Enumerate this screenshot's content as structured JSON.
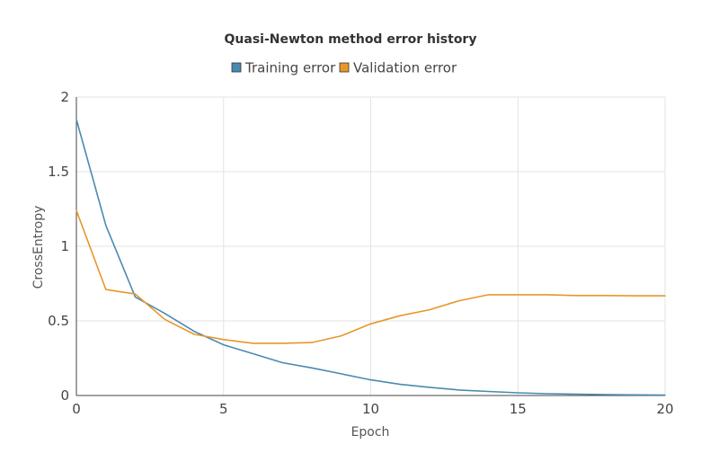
{
  "chart_data": {
    "type": "line",
    "title": "Quasi-Newton method error history",
    "xlabel": "Epoch",
    "ylabel": "CrossEntropy",
    "xlim": [
      0,
      20
    ],
    "ylim": [
      0,
      2
    ],
    "xticks": [
      "0",
      "5",
      "10",
      "15",
      "20"
    ],
    "yticks": [
      "0",
      "0.5",
      "1",
      "1.5",
      "2"
    ],
    "grid": true,
    "legend_position": "top-center",
    "x": [
      0,
      1,
      2,
      3,
      4,
      5,
      6,
      7,
      8,
      9,
      10,
      11,
      12,
      13,
      14,
      15,
      16,
      17,
      18,
      19,
      20
    ],
    "series": [
      {
        "name": "Training error",
        "color": "#4a8ab0",
        "values": [
          1.85,
          1.14,
          0.66,
          0.55,
          0.43,
          0.34,
          0.28,
          0.22,
          0.185,
          0.145,
          0.105,
          0.075,
          0.055,
          0.037,
          0.027,
          0.018,
          0.012,
          0.009,
          0.006,
          0.004,
          0.003
        ]
      },
      {
        "name": "Validation error",
        "color": "#e8962b",
        "values": [
          1.24,
          0.71,
          0.68,
          0.51,
          0.41,
          0.375,
          0.35,
          0.35,
          0.355,
          0.4,
          0.48,
          0.535,
          0.575,
          0.635,
          0.675,
          0.675,
          0.675,
          0.67,
          0.67,
          0.668,
          0.668
        ]
      }
    ]
  }
}
